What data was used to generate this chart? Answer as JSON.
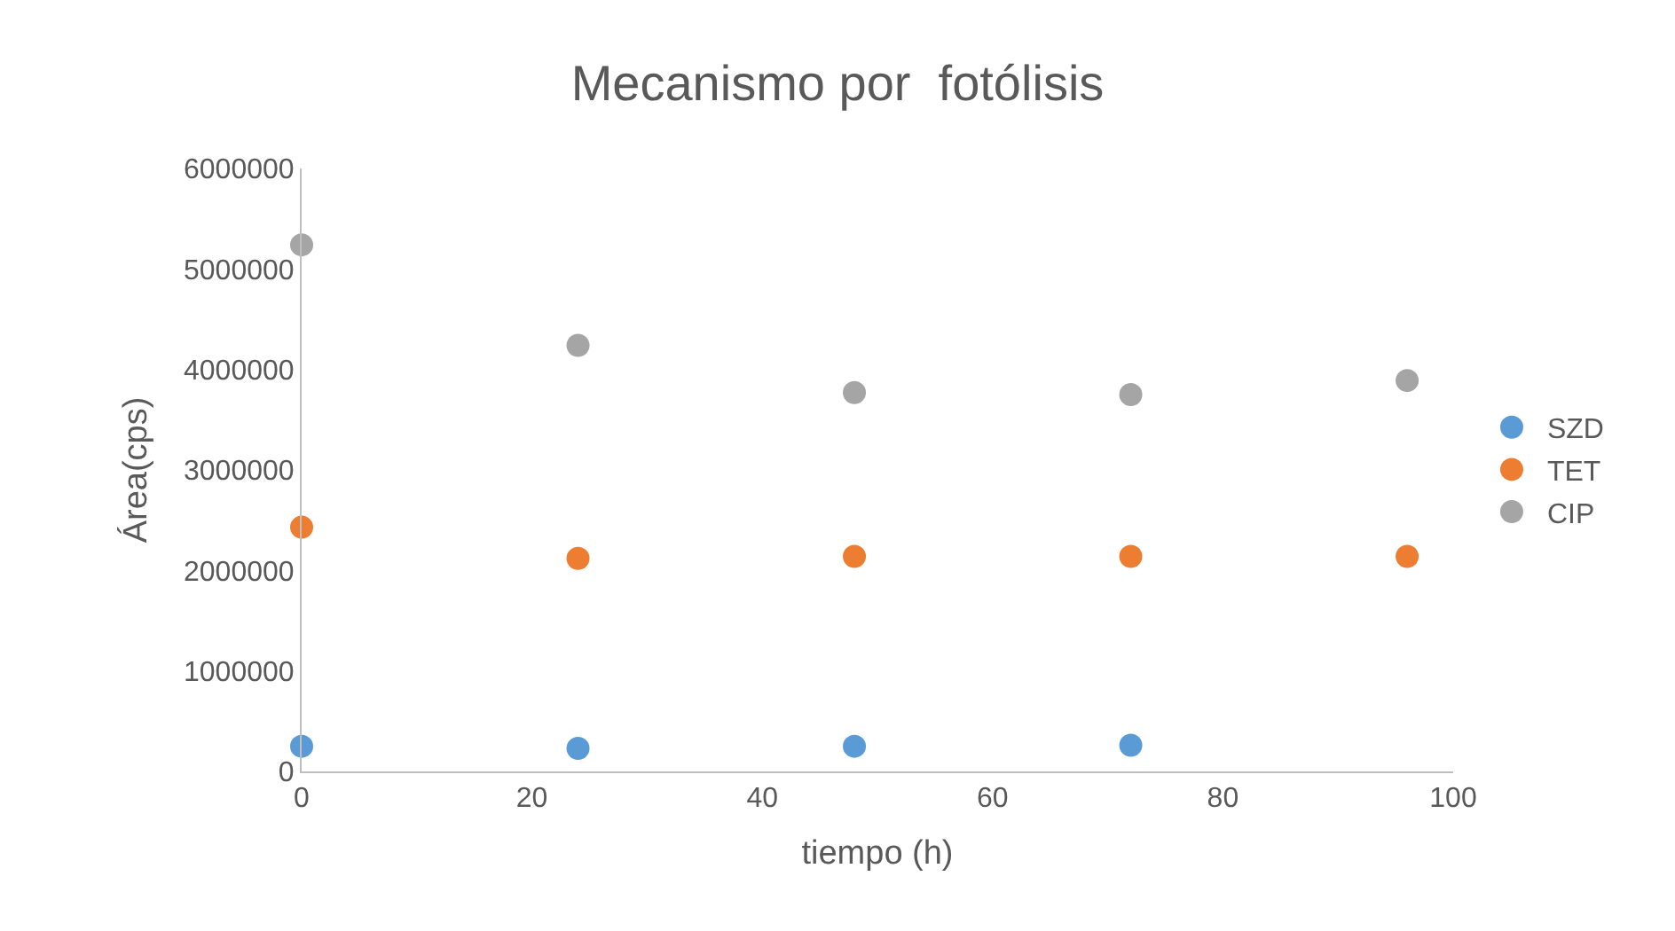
{
  "chart_data": {
    "type": "scatter",
    "title": "Mecanismo por  fotólisis",
    "xlabel": "tiempo (h)",
    "ylabel": "Área(cps)",
    "x": [
      0,
      24,
      48,
      72,
      96
    ],
    "series": [
      {
        "name": "SZD",
        "color": "#5b9bd5",
        "x": [
          0,
          24,
          48,
          72
        ],
        "values": [
          250000,
          230000,
          250000,
          260000
        ]
      },
      {
        "name": "TET",
        "color": "#ed7d31",
        "values": [
          2430000,
          2120000,
          2140000,
          2140000,
          2140000
        ]
      },
      {
        "name": "CIP",
        "color": "#a5a5a5",
        "values": [
          5240000,
          4240000,
          3770000,
          3750000,
          3890000
        ]
      }
    ],
    "xlim": [
      0,
      100
    ],
    "xticks": [
      0,
      20,
      40,
      60,
      80,
      100
    ],
    "ylim": [
      0,
      6000000
    ],
    "yticks": [
      0,
      1000000,
      2000000,
      3000000,
      4000000,
      5000000,
      6000000
    ],
    "grid": false,
    "legend": "right",
    "marker": "circle"
  }
}
